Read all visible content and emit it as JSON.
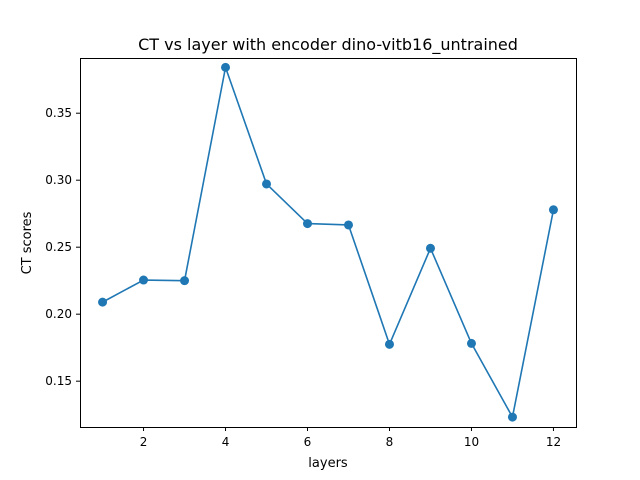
{
  "chart_data": {
    "type": "line",
    "title": "CT vs layer with encoder dino-vitb16_untrained",
    "xlabel": "layers",
    "ylabel": "CT scores",
    "xlim": [
      0.45,
      12.55
    ],
    "ylim": [
      0.1158,
      0.3912
    ],
    "xticks": [
      2,
      4,
      6,
      8,
      10,
      12
    ],
    "yticks": [
      0.15,
      0.2,
      0.25,
      0.3,
      0.35
    ],
    "ytick_labels": [
      "0.15",
      "0.20",
      "0.25",
      "0.30",
      "0.35"
    ],
    "grid": false,
    "line_color": "#1f77b4",
    "series": [
      {
        "x": [
          1,
          2,
          3,
          4,
          5,
          6,
          7,
          8,
          9,
          10,
          11,
          12
        ],
        "values": [
          0.209,
          0.2255,
          0.225,
          0.3842,
          0.2972,
          0.2676,
          0.2666,
          0.1775,
          0.2492,
          0.1782,
          0.1232,
          0.2779
        ]
      }
    ]
  }
}
